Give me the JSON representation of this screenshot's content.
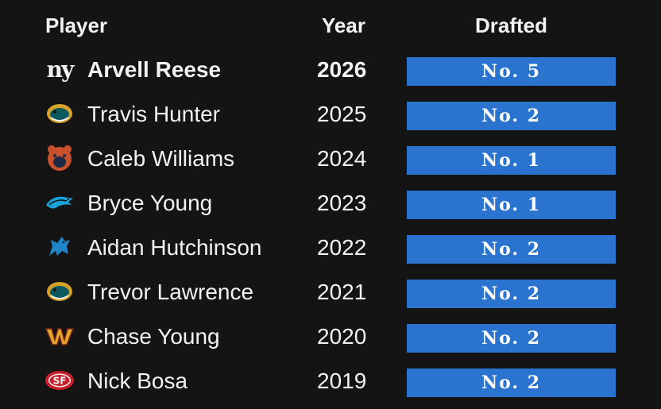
{
  "headers": {
    "player": "Player",
    "year": "Year",
    "drafted": "Drafted"
  },
  "colors": {
    "background": "#141414",
    "pill": "#2a74d0",
    "text": "#f2f2f2"
  },
  "rows": [
    {
      "name": "Arvell Reese",
      "year": "2026",
      "pick": "No. 5",
      "team_icon": "giants-logo-icon",
      "highlight": true
    },
    {
      "name": "Travis Hunter",
      "year": "2025",
      "pick": "No. 2",
      "team_icon": "jaguars-logo-icon"
    },
    {
      "name": "Caleb Williams",
      "year": "2024",
      "pick": "No. 1",
      "team_icon": "bears-logo-icon"
    },
    {
      "name": "Bryce Young",
      "year": "2023",
      "pick": "No. 1",
      "team_icon": "panthers-logo-icon"
    },
    {
      "name": "Aidan Hutchinson",
      "year": "2022",
      "pick": "No. 2",
      "team_icon": "lions-logo-icon"
    },
    {
      "name": "Trevor Lawrence",
      "year": "2021",
      "pick": "No. 2",
      "team_icon": "jaguars-logo-icon"
    },
    {
      "name": "Chase Young",
      "year": "2020",
      "pick": "No. 2",
      "team_icon": "commanders-logo-icon"
    },
    {
      "name": "Nick Bosa",
      "year": "2019",
      "pick": "No. 2",
      "team_icon": "49ers-logo-icon"
    }
  ]
}
